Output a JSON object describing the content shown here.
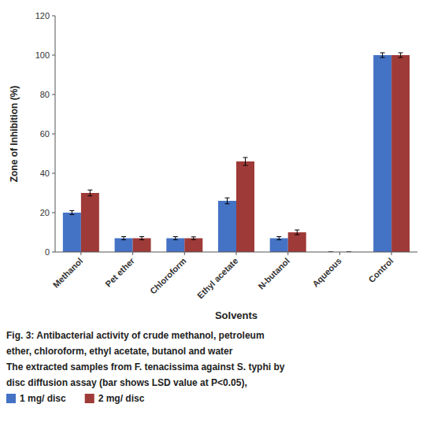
{
  "chart_data": {
    "type": "bar",
    "categories": [
      "Methanol",
      "Pet ether",
      "Chloroform",
      "Ethyl acetate",
      "N-butanol",
      "Aqueous",
      "Control"
    ],
    "series": [
      {
        "name": "1 mg/ disc",
        "color": "#4472C4",
        "values": [
          20,
          7,
          7,
          26,
          7,
          0,
          100
        ],
        "errors": [
          1.0,
          0.8,
          0.8,
          1.5,
          0.8,
          0,
          1.2
        ]
      },
      {
        "name": "2 mg/ disc",
        "color": "#9E3A38",
        "values": [
          30,
          7,
          7,
          46,
          10,
          0,
          100
        ],
        "errors": [
          1.5,
          0.8,
          0.7,
          2.0,
          1.2,
          0,
          1.2
        ]
      }
    ],
    "y_label": "Zone of Inhibition (%)",
    "x_label": "Solvents",
    "ylim": [
      0,
      120
    ],
    "yticks": [
      0,
      20,
      40,
      60,
      80,
      100,
      120
    ],
    "grid": false,
    "legend": "bottom",
    "annotations": [
      "Fig. 3:  Antibacterial activity of crude methanol, petroleum",
      "ether, chloroform, ethyl acetate, butanol and water",
      "The extracted samples from F. tenacissima against S. typhi by",
      "disc diffusion assay (bar shows LSD value at P<0.05),"
    ]
  }
}
